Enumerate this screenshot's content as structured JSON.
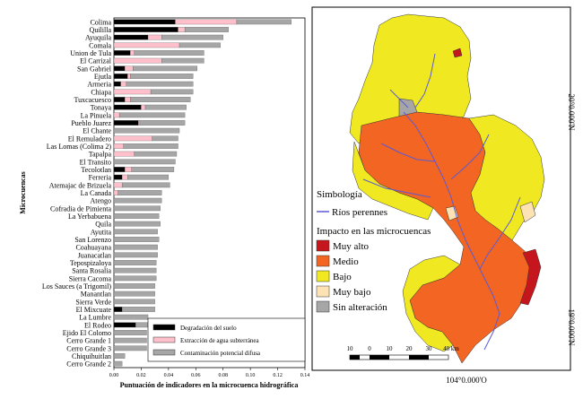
{
  "chart_data": {
    "type": "bar",
    "orientation": "horizontal",
    "stacked": true,
    "ylabel": "Microcuencas",
    "xlabel": "Puntuación de indicadores en la microcuenca hidrográfica",
    "xlim": [
      0,
      0.14
    ],
    "xticks": [
      "0.00",
      "0.02",
      "0.04",
      "0.06",
      "0.08",
      "0.10",
      "0.12",
      "0.14"
    ],
    "legend_position": "bottom-right",
    "categories": [
      "Colima",
      "Quililla",
      "Ayuquila",
      "Comala",
      "Union de Tula",
      "El Carrizal",
      "San Gabriel",
      "Ejutla",
      "Armeria",
      "Chiapa",
      "Tuxcacuesco",
      "Tonaya",
      "La Pinuela",
      "Pueblo Juarez",
      "El Chante",
      "El Remuladero",
      "Las Lomas (Colima 2)",
      "Tapalpa",
      "El Transito",
      "Tecolotlan",
      "Ferreria",
      "Atemajac de Brizuela",
      "La Canada",
      "Atengo",
      "Cofradia de Pimienta",
      "La Yerbabuena",
      "Quila",
      "Ayutita",
      "San Lorenzo",
      "Coahuayana",
      "Juanacatlan",
      "Tepospizaloya",
      "Santa Rosalia",
      "Sierra Cacoma",
      "Los Sauces (a Trigomil)",
      "Manantlan",
      "Sierra Verde",
      "El Mixcuate",
      "La Lumbre",
      "El Rodeo",
      "Ejido El Colomo",
      "Cerro Grande 1",
      "Cerro Grande 3",
      "Chiquihuitlan",
      "Cerro Grande 2"
    ],
    "series": [
      {
        "name": "Degradación del suelo",
        "color": "#000000",
        "values": [
          0.045,
          0.047,
          0.025,
          0.0,
          0.012,
          0.0,
          0.008,
          0.01,
          0.005,
          0.0,
          0.008,
          0.02,
          0.0,
          0.018,
          0.0,
          0.0,
          0.0,
          0.0,
          0.0,
          0.008,
          0.006,
          0.0,
          0.0,
          0.0,
          0.0,
          0.0,
          0.0,
          0.0,
          0.0,
          0.0,
          0.0,
          0.0,
          0.0,
          0.0,
          0.0,
          0.0,
          0.0,
          0.006,
          0.0,
          0.016,
          0.0,
          0.0,
          0.0,
          0.0,
          0.0
        ]
      },
      {
        "name": "Extracción de agua subterránea",
        "color": "#ffc0cb",
        "values": [
          0.045,
          0.005,
          0.01,
          0.048,
          0.003,
          0.035,
          0.006,
          0.002,
          0.004,
          0.027,
          0.004,
          0.003,
          0.004,
          0.001,
          0.0,
          0.028,
          0.007,
          0.015,
          0.0,
          0.005,
          0.004,
          0.006,
          0.003,
          0.0,
          0.0,
          0.0,
          0.0,
          0.0,
          0.0,
          0.0,
          0.0,
          0.0,
          0.0,
          0.0,
          0.0,
          0.0,
          0.0,
          0.0,
          0.0,
          0.0,
          0.0,
          0.0,
          0.0,
          0.0,
          0.0
        ]
      },
      {
        "name": "Contaminación potencial difusa",
        "color": "#a6a6a6",
        "values": [
          0.04,
          0.032,
          0.045,
          0.03,
          0.051,
          0.031,
          0.047,
          0.046,
          0.049,
          0.031,
          0.044,
          0.03,
          0.048,
          0.033,
          0.048,
          0.019,
          0.04,
          0.031,
          0.045,
          0.031,
          0.03,
          0.035,
          0.032,
          0.035,
          0.034,
          0.033,
          0.034,
          0.032,
          0.033,
          0.032,
          0.032,
          0.031,
          0.031,
          0.031,
          0.03,
          0.03,
          0.03,
          0.024,
          0.025,
          0.009,
          0.024,
          0.024,
          0.024,
          0.008,
          0.006
        ]
      }
    ]
  },
  "map": {
    "legend_title": "Simbología",
    "river_label": "Ríos perennes",
    "impact_title": "Impacto en las microcuencas",
    "categories": [
      {
        "label": "Muy alto",
        "color": "#c4161c"
      },
      {
        "label": "Medio",
        "color": "#f26522"
      },
      {
        "label": "Bajo",
        "color": "#f0e921"
      },
      {
        "label": "Muy bajo",
        "color": "#fde3b3"
      },
      {
        "label": "Sin alteración",
        "color": "#a6a6a6"
      }
    ],
    "river_color": "#5b5bd6",
    "lat_labels": [
      "20°0.000'N",
      "19°0.000'N"
    ],
    "lon_label": "104°0.000'O",
    "scale_labels": [
      "10",
      "0",
      "10",
      "20",
      "30",
      "40 km"
    ]
  }
}
